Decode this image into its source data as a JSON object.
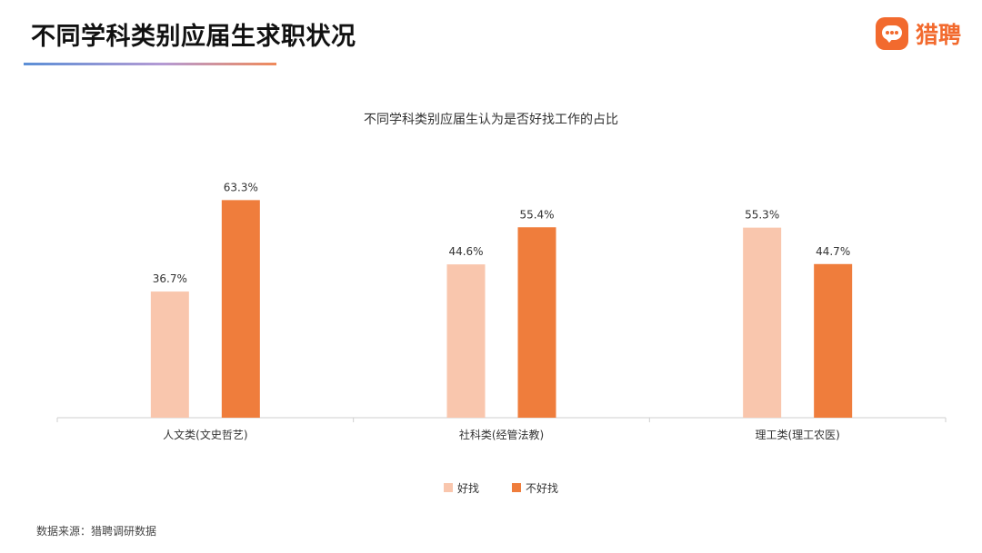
{
  "header": {
    "title": "不同学科类别应届生求职状况",
    "brand_name": "猎聘"
  },
  "icons": {
    "brand_logo": "liepin-chat-bubble-logo"
  },
  "colors": {
    "series_good": "#f9c6ad",
    "series_bad": "#ef7d3c",
    "brand": "#f26a2e",
    "axis": "#cfcfcf"
  },
  "chart_data": {
    "type": "bar",
    "title": "不同学科类别应届生认为是否好找工作的占比",
    "categories": [
      "人文类(文史哲艺)",
      "社科类(经管法教)",
      "理工类(理工农医)"
    ],
    "series": [
      {
        "name": "好找",
        "values": [
          36.7,
          44.6,
          55.3
        ],
        "labels": [
          "36.7%",
          "44.6%",
          "55.3%"
        ]
      },
      {
        "name": "不好找",
        "values": [
          63.3,
          55.4,
          44.7
        ],
        "labels": [
          "63.3%",
          "55.4%",
          "44.7%"
        ]
      }
    ],
    "ylim": [
      0,
      70
    ],
    "grid": false,
    "legend": "bottom-center",
    "xlabel": "",
    "ylabel": ""
  },
  "footer": {
    "source": "数据来源：猎聘调研数据"
  }
}
